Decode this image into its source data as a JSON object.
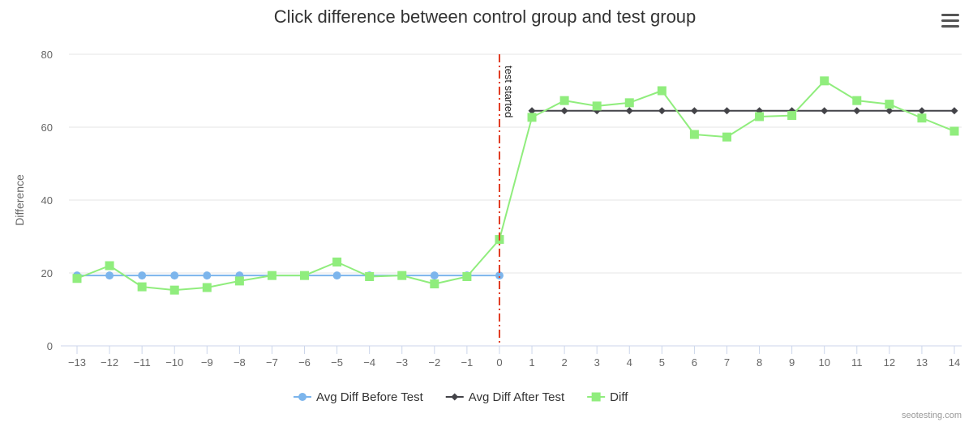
{
  "chart_data": {
    "type": "line",
    "title": "Click difference between control group and test group",
    "ylabel": "Difference",
    "xlabel": "",
    "ylim": [
      0,
      80
    ],
    "yticks": [
      0,
      20,
      40,
      60,
      80
    ],
    "x": [
      -13,
      -12,
      -11,
      -10,
      -9,
      -8,
      -7,
      -6,
      -5,
      -4,
      -3,
      -2,
      -1,
      0,
      1,
      2,
      3,
      4,
      5,
      6,
      7,
      8,
      9,
      10,
      11,
      12,
      13,
      14
    ],
    "grid": true,
    "legend_position": "bottom-center",
    "series": [
      {
        "name": "Avg Diff Before Test",
        "color": "#7cb5ec",
        "marker": "circle",
        "x": [
          -13,
          -12,
          -11,
          -10,
          -9,
          -8,
          -7,
          -6,
          -5,
          -4,
          -3,
          -2,
          -1,
          0
        ],
        "values": [
          19.3,
          19.3,
          19.3,
          19.3,
          19.3,
          19.3,
          19.3,
          19.3,
          19.3,
          19.3,
          19.3,
          19.3,
          19.3,
          19.3
        ]
      },
      {
        "name": "Avg Diff After Test",
        "color": "#434348",
        "marker": "diamond",
        "x": [
          1,
          2,
          3,
          4,
          5,
          6,
          7,
          8,
          9,
          10,
          11,
          12,
          13,
          14
        ],
        "values": [
          64.5,
          64.5,
          64.5,
          64.5,
          64.5,
          64.5,
          64.5,
          64.5,
          64.5,
          64.5,
          64.5,
          64.5,
          64.5,
          64.5
        ]
      },
      {
        "name": "Diff",
        "color": "#90ed7d",
        "marker": "square",
        "x": [
          -13,
          -12,
          -11,
          -10,
          -9,
          -8,
          -7,
          -6,
          -5,
          -4,
          -3,
          -2,
          -1,
          0,
          1,
          2,
          3,
          4,
          5,
          6,
          7,
          8,
          9,
          10,
          11,
          12,
          13,
          14
        ],
        "values": [
          18.5,
          22,
          16.2,
          15.3,
          16,
          17.8,
          19.3,
          19.3,
          23,
          19,
          19.3,
          17,
          19,
          29.2,
          62.7,
          67.3,
          65.8,
          66.7,
          70,
          58,
          57.3,
          62.9,
          63.2,
          72.7,
          67.3,
          66.3,
          62.5,
          58.9
        ]
      }
    ],
    "annotations": [
      {
        "type": "vertical-line",
        "x": 0,
        "label": "test started",
        "color": "#e03a20",
        "style": "dash-dot"
      }
    ]
  },
  "credit": "seotesting.com",
  "menu_icon": "hamburger-menu-icon"
}
